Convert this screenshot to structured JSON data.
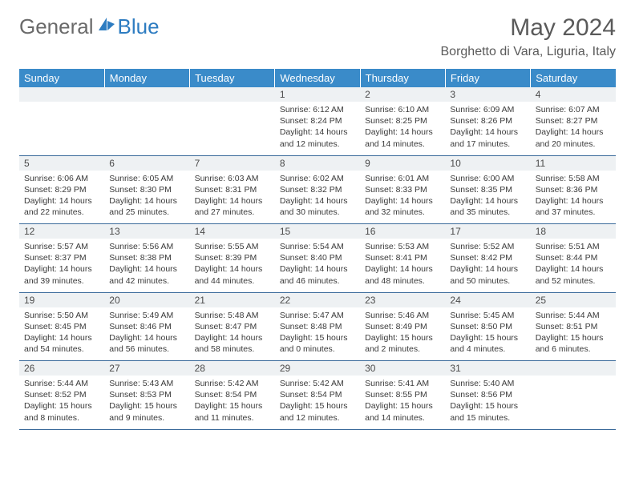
{
  "logo": {
    "part1": "General",
    "part2": "Blue"
  },
  "title": "May 2024",
  "location": "Borghetto di Vara, Liguria, Italy",
  "header_bg": "#3a8bc9",
  "daynum_bg": "#eef1f3",
  "border_color": "#3a6a9a",
  "dayNames": [
    "Sunday",
    "Monday",
    "Tuesday",
    "Wednesday",
    "Thursday",
    "Friday",
    "Saturday"
  ],
  "weeks": [
    [
      {
        "n": "",
        "sr": "",
        "ss": "",
        "dl": ""
      },
      {
        "n": "",
        "sr": "",
        "ss": "",
        "dl": ""
      },
      {
        "n": "",
        "sr": "",
        "ss": "",
        "dl": ""
      },
      {
        "n": "1",
        "sr": "Sunrise: 6:12 AM",
        "ss": "Sunset: 8:24 PM",
        "dl": "Daylight: 14 hours and 12 minutes."
      },
      {
        "n": "2",
        "sr": "Sunrise: 6:10 AM",
        "ss": "Sunset: 8:25 PM",
        "dl": "Daylight: 14 hours and 14 minutes."
      },
      {
        "n": "3",
        "sr": "Sunrise: 6:09 AM",
        "ss": "Sunset: 8:26 PM",
        "dl": "Daylight: 14 hours and 17 minutes."
      },
      {
        "n": "4",
        "sr": "Sunrise: 6:07 AM",
        "ss": "Sunset: 8:27 PM",
        "dl": "Daylight: 14 hours and 20 minutes."
      }
    ],
    [
      {
        "n": "5",
        "sr": "Sunrise: 6:06 AM",
        "ss": "Sunset: 8:29 PM",
        "dl": "Daylight: 14 hours and 22 minutes."
      },
      {
        "n": "6",
        "sr": "Sunrise: 6:05 AM",
        "ss": "Sunset: 8:30 PM",
        "dl": "Daylight: 14 hours and 25 minutes."
      },
      {
        "n": "7",
        "sr": "Sunrise: 6:03 AM",
        "ss": "Sunset: 8:31 PM",
        "dl": "Daylight: 14 hours and 27 minutes."
      },
      {
        "n": "8",
        "sr": "Sunrise: 6:02 AM",
        "ss": "Sunset: 8:32 PM",
        "dl": "Daylight: 14 hours and 30 minutes."
      },
      {
        "n": "9",
        "sr": "Sunrise: 6:01 AM",
        "ss": "Sunset: 8:33 PM",
        "dl": "Daylight: 14 hours and 32 minutes."
      },
      {
        "n": "10",
        "sr": "Sunrise: 6:00 AM",
        "ss": "Sunset: 8:35 PM",
        "dl": "Daylight: 14 hours and 35 minutes."
      },
      {
        "n": "11",
        "sr": "Sunrise: 5:58 AM",
        "ss": "Sunset: 8:36 PM",
        "dl": "Daylight: 14 hours and 37 minutes."
      }
    ],
    [
      {
        "n": "12",
        "sr": "Sunrise: 5:57 AM",
        "ss": "Sunset: 8:37 PM",
        "dl": "Daylight: 14 hours and 39 minutes."
      },
      {
        "n": "13",
        "sr": "Sunrise: 5:56 AM",
        "ss": "Sunset: 8:38 PM",
        "dl": "Daylight: 14 hours and 42 minutes."
      },
      {
        "n": "14",
        "sr": "Sunrise: 5:55 AM",
        "ss": "Sunset: 8:39 PM",
        "dl": "Daylight: 14 hours and 44 minutes."
      },
      {
        "n": "15",
        "sr": "Sunrise: 5:54 AM",
        "ss": "Sunset: 8:40 PM",
        "dl": "Daylight: 14 hours and 46 minutes."
      },
      {
        "n": "16",
        "sr": "Sunrise: 5:53 AM",
        "ss": "Sunset: 8:41 PM",
        "dl": "Daylight: 14 hours and 48 minutes."
      },
      {
        "n": "17",
        "sr": "Sunrise: 5:52 AM",
        "ss": "Sunset: 8:42 PM",
        "dl": "Daylight: 14 hours and 50 minutes."
      },
      {
        "n": "18",
        "sr": "Sunrise: 5:51 AM",
        "ss": "Sunset: 8:44 PM",
        "dl": "Daylight: 14 hours and 52 minutes."
      }
    ],
    [
      {
        "n": "19",
        "sr": "Sunrise: 5:50 AM",
        "ss": "Sunset: 8:45 PM",
        "dl": "Daylight: 14 hours and 54 minutes."
      },
      {
        "n": "20",
        "sr": "Sunrise: 5:49 AM",
        "ss": "Sunset: 8:46 PM",
        "dl": "Daylight: 14 hours and 56 minutes."
      },
      {
        "n": "21",
        "sr": "Sunrise: 5:48 AM",
        "ss": "Sunset: 8:47 PM",
        "dl": "Daylight: 14 hours and 58 minutes."
      },
      {
        "n": "22",
        "sr": "Sunrise: 5:47 AM",
        "ss": "Sunset: 8:48 PM",
        "dl": "Daylight: 15 hours and 0 minutes."
      },
      {
        "n": "23",
        "sr": "Sunrise: 5:46 AM",
        "ss": "Sunset: 8:49 PM",
        "dl": "Daylight: 15 hours and 2 minutes."
      },
      {
        "n": "24",
        "sr": "Sunrise: 5:45 AM",
        "ss": "Sunset: 8:50 PM",
        "dl": "Daylight: 15 hours and 4 minutes."
      },
      {
        "n": "25",
        "sr": "Sunrise: 5:44 AM",
        "ss": "Sunset: 8:51 PM",
        "dl": "Daylight: 15 hours and 6 minutes."
      }
    ],
    [
      {
        "n": "26",
        "sr": "Sunrise: 5:44 AM",
        "ss": "Sunset: 8:52 PM",
        "dl": "Daylight: 15 hours and 8 minutes."
      },
      {
        "n": "27",
        "sr": "Sunrise: 5:43 AM",
        "ss": "Sunset: 8:53 PM",
        "dl": "Daylight: 15 hours and 9 minutes."
      },
      {
        "n": "28",
        "sr": "Sunrise: 5:42 AM",
        "ss": "Sunset: 8:54 PM",
        "dl": "Daylight: 15 hours and 11 minutes."
      },
      {
        "n": "29",
        "sr": "Sunrise: 5:42 AM",
        "ss": "Sunset: 8:54 PM",
        "dl": "Daylight: 15 hours and 12 minutes."
      },
      {
        "n": "30",
        "sr": "Sunrise: 5:41 AM",
        "ss": "Sunset: 8:55 PM",
        "dl": "Daylight: 15 hours and 14 minutes."
      },
      {
        "n": "31",
        "sr": "Sunrise: 5:40 AM",
        "ss": "Sunset: 8:56 PM",
        "dl": "Daylight: 15 hours and 15 minutes."
      },
      {
        "n": "",
        "sr": "",
        "ss": "",
        "dl": ""
      }
    ]
  ]
}
